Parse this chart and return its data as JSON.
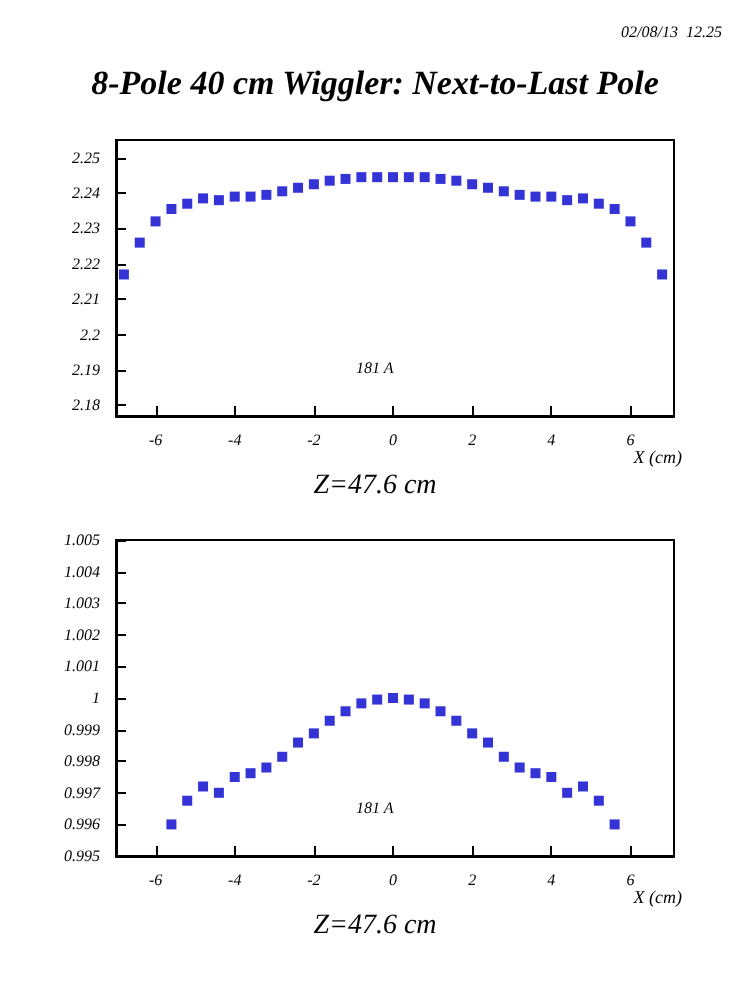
{
  "chart_data": [
    {
      "type": "scatter",
      "title": "8-Pole 40 cm Wiggler: Next-to-Last Pole",
      "xlabel": "X (cm)",
      "annotations": [
        "02/08/13  12.25",
        "181 A",
        "Z=47.6 cm"
      ],
      "x": [
        -6.8,
        -6.4,
        -6.0,
        -5.6,
        -5.2,
        -4.8,
        -4.4,
        -4.0,
        -3.6,
        -3.2,
        -2.8,
        -2.4,
        -2.0,
        -1.6,
        -1.2,
        -0.8,
        -0.4,
        0,
        0.4,
        0.8,
        1.2,
        1.6,
        2.0,
        2.4,
        2.8,
        3.2,
        3.6,
        4.0,
        4.4,
        4.8,
        5.2,
        5.6,
        6.0,
        6.4,
        6.8
      ],
      "series": [
        {
          "color": "#0000cc",
          "values": [
            2.217,
            2.226,
            2.232,
            2.2355,
            2.237,
            2.2385,
            2.238,
            2.239,
            2.239,
            2.2395,
            2.2405,
            2.2415,
            2.2425,
            2.2435,
            2.244,
            2.2445,
            2.2445,
            2.2445,
            2.2445,
            2.2445,
            2.244,
            2.2435,
            2.2425,
            2.2415,
            2.2405,
            2.2395,
            2.239,
            2.239,
            2.238,
            2.2385,
            2.237,
            2.2355,
            2.232,
            2.226,
            2.217
          ]
        }
      ],
      "xlim": [
        -7,
        7.1
      ],
      "xticks": [
        -6,
        -4,
        -2,
        0,
        2,
        4,
        6
      ],
      "ylim": [
        2.177,
        2.255
      ],
      "yticks": [
        2.18,
        2.19,
        2.2,
        2.21,
        2.22,
        2.23,
        2.24,
        2.25
      ],
      "grid": false,
      "marker": "square"
    },
    {
      "type": "scatter",
      "xlabel": "X (cm)",
      "annotations": [
        "181 A",
        "Z=47.6 cm"
      ],
      "x": [
        -5.6,
        -5.2,
        -4.8,
        -4.4,
        -4.0,
        -3.6,
        -3.2,
        -2.8,
        -2.4,
        -2.0,
        -1.6,
        -1.2,
        -0.8,
        -0.4,
        0,
        0.4,
        0.8,
        1.2,
        1.6,
        2.0,
        2.4,
        2.8,
        3.2,
        3.6,
        4.0,
        4.4,
        4.8,
        5.2,
        5.6
      ],
      "series": [
        {
          "color": "#0000cc",
          "values": [
            0.996,
            0.99675,
            0.9972,
            0.997,
            0.9975,
            0.99762,
            0.9978,
            0.99814,
            0.99859,
            0.99888,
            0.99928,
            0.99958,
            0.99983,
            0.99995,
            1.0,
            0.99995,
            0.99983,
            0.99958,
            0.99928,
            0.99888,
            0.99859,
            0.99814,
            0.9978,
            0.99762,
            0.9975,
            0.997,
            0.9972,
            0.99675,
            0.996
          ]
        }
      ],
      "xlim": [
        -7,
        7.1
      ],
      "xticks": [
        -6,
        -4,
        -2,
        0,
        2,
        4,
        6
      ],
      "ylim": [
        0.995,
        1.005
      ],
      "yticks": [
        0.995,
        0.996,
        0.997,
        0.998,
        0.999,
        1,
        1.001,
        1.002,
        1.003,
        1.004,
        1.005
      ],
      "grid": false,
      "marker": "square"
    }
  ]
}
